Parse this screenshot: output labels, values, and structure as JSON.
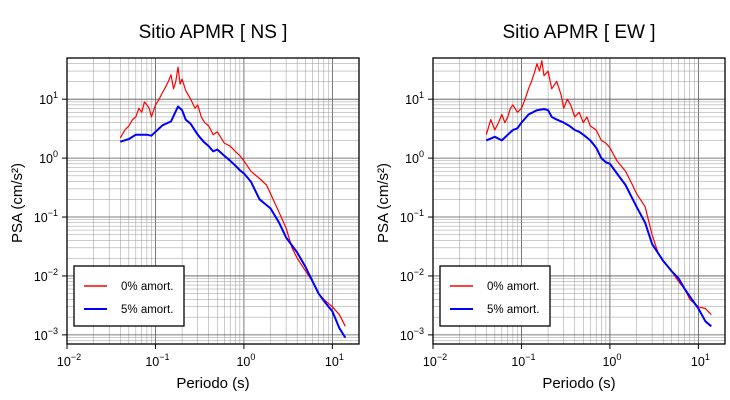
{
  "chart_data": [
    {
      "type": "line",
      "title": "Sitio APMR [ NS ]",
      "xlabel": "Periodo (s)",
      "ylabel": "PSA (cm/s²)",
      "xscale": "log",
      "yscale": "log",
      "xlim": [
        0.01,
        20
      ],
      "ylim": [
        0.0007,
        50
      ],
      "grid": true,
      "legend_position": "bottom-left",
      "x_ticks": [
        {
          "b": "10",
          "e": "−2"
        },
        {
          "b": "10",
          "e": "−1"
        },
        {
          "b": "10",
          "e": "0"
        },
        {
          "b": "10",
          "e": "1"
        }
      ],
      "y_ticks": [
        {
          "b": "10",
          "e": "−3"
        },
        {
          "b": "10",
          "e": "−2"
        },
        {
          "b": "10",
          "e": "−1"
        },
        {
          "b": "10",
          "e": "0"
        },
        {
          "b": "10",
          "e": "1"
        }
      ],
      "series": [
        {
          "name": "0% amort.",
          "color": "#ff0000",
          "x": [
            0.04,
            0.045,
            0.05,
            0.055,
            0.06,
            0.065,
            0.07,
            0.075,
            0.08,
            0.085,
            0.09,
            0.1,
            0.11,
            0.12,
            0.13,
            0.14,
            0.15,
            0.16,
            0.17,
            0.18,
            0.19,
            0.2,
            0.22,
            0.25,
            0.28,
            0.3,
            0.33,
            0.36,
            0.4,
            0.45,
            0.5,
            0.6,
            0.7,
            0.8,
            0.9,
            1.0,
            1.2,
            1.5,
            1.8,
            2.0,
            2.5,
            3.0,
            3.5,
            4.0,
            5.0,
            6.0,
            7.0,
            8.0,
            10.0,
            12.0,
            14.0
          ],
          "y": [
            2.2,
            3.0,
            3.5,
            4.5,
            5.0,
            7.0,
            6.0,
            9.0,
            8.0,
            7.0,
            5.0,
            8.0,
            10.0,
            13.0,
            16.0,
            20.0,
            26.0,
            15.0,
            20.0,
            35.0,
            18.0,
            22.0,
            14.0,
            10.0,
            7.0,
            8.0,
            5.0,
            4.0,
            3.5,
            2.5,
            2.8,
            1.8,
            1.6,
            1.3,
            1.1,
            0.9,
            0.6,
            0.45,
            0.35,
            0.25,
            0.12,
            0.065,
            0.03,
            0.02,
            0.012,
            0.008,
            0.005,
            0.004,
            0.003,
            0.0022,
            0.0014
          ]
        },
        {
          "name": "5% amort.",
          "color": "#0000ff",
          "x": [
            0.04,
            0.05,
            0.06,
            0.07,
            0.08,
            0.09,
            0.1,
            0.12,
            0.15,
            0.18,
            0.2,
            0.22,
            0.25,
            0.3,
            0.35,
            0.4,
            0.45,
            0.5,
            0.6,
            0.7,
            0.8,
            0.9,
            1.0,
            1.2,
            1.5,
            2.0,
            2.5,
            3.0,
            4.0,
            5.0,
            6.0,
            7.0,
            8.0,
            10.0,
            12.0,
            14.0
          ],
          "y": [
            1.9,
            2.1,
            2.5,
            2.5,
            2.5,
            2.4,
            2.8,
            3.6,
            4.2,
            7.5,
            6.5,
            4.5,
            3.8,
            2.5,
            1.9,
            1.6,
            1.3,
            1.4,
            1.1,
            0.9,
            0.75,
            0.62,
            0.55,
            0.4,
            0.2,
            0.14,
            0.08,
            0.045,
            0.025,
            0.014,
            0.008,
            0.005,
            0.0038,
            0.0025,
            0.0013,
            0.0009
          ]
        }
      ]
    },
    {
      "type": "line",
      "title": "Sitio APMR [ EW ]",
      "xlabel": "Periodo (s)",
      "ylabel": "PSA (cm/s²)",
      "xscale": "log",
      "yscale": "log",
      "xlim": [
        0.01,
        20
      ],
      "ylim": [
        0.0007,
        50
      ],
      "grid": true,
      "legend_position": "bottom-left",
      "x_ticks": [
        {
          "b": "10",
          "e": "−2"
        },
        {
          "b": "10",
          "e": "−1"
        },
        {
          "b": "10",
          "e": "0"
        },
        {
          "b": "10",
          "e": "1"
        }
      ],
      "y_ticks": [
        {
          "b": "10",
          "e": "−3"
        },
        {
          "b": "10",
          "e": "−2"
        },
        {
          "b": "10",
          "e": "−1"
        },
        {
          "b": "10",
          "e": "0"
        },
        {
          "b": "10",
          "e": "1"
        }
      ],
      "series": [
        {
          "name": "0% amort.",
          "color": "#ff0000",
          "x": [
            0.04,
            0.045,
            0.05,
            0.055,
            0.06,
            0.065,
            0.07,
            0.075,
            0.08,
            0.09,
            0.1,
            0.11,
            0.12,
            0.13,
            0.14,
            0.15,
            0.16,
            0.17,
            0.18,
            0.2,
            0.22,
            0.25,
            0.28,
            0.3,
            0.33,
            0.36,
            0.4,
            0.45,
            0.5,
            0.55,
            0.6,
            0.7,
            0.8,
            0.9,
            1.0,
            1.2,
            1.5,
            1.8,
            2.0,
            2.5,
            3.0,
            3.5,
            4.0,
            5.0,
            6.0,
            7.0,
            8.0,
            10.0,
            12.0,
            14.0
          ],
          "y": [
            2.5,
            4.5,
            3.0,
            4.0,
            5.5,
            4.0,
            5.0,
            7.0,
            8.0,
            6.0,
            7.0,
            10.0,
            15.0,
            20.0,
            28.0,
            40.0,
            30.0,
            45.0,
            25.0,
            30.0,
            15.0,
            20.0,
            12.0,
            7.0,
            10.0,
            8.0,
            5.0,
            6.0,
            4.0,
            5.0,
            3.5,
            3.0,
            2.0,
            1.8,
            1.5,
            0.9,
            0.6,
            0.35,
            0.25,
            0.15,
            0.05,
            0.025,
            0.018,
            0.012,
            0.008,
            0.006,
            0.004,
            0.003,
            0.0028,
            0.0022
          ]
        },
        {
          "name": "5% amort.",
          "color": "#0000ff",
          "x": [
            0.04,
            0.05,
            0.06,
            0.07,
            0.08,
            0.09,
            0.1,
            0.12,
            0.15,
            0.18,
            0.2,
            0.22,
            0.25,
            0.3,
            0.35,
            0.4,
            0.45,
            0.5,
            0.6,
            0.7,
            0.8,
            0.9,
            1.0,
            1.2,
            1.5,
            2.0,
            2.5,
            3.0,
            4.0,
            5.0,
            6.0,
            7.0,
            8.0,
            10.0,
            12.0,
            14.0
          ],
          "y": [
            2.0,
            2.3,
            2.0,
            2.5,
            3.0,
            3.2,
            4.0,
            5.5,
            6.5,
            6.8,
            6.5,
            5.0,
            4.5,
            4.0,
            3.5,
            3.0,
            2.8,
            2.5,
            2.0,
            1.5,
            1.0,
            0.85,
            0.8,
            0.55,
            0.35,
            0.15,
            0.08,
            0.035,
            0.018,
            0.012,
            0.009,
            0.006,
            0.0045,
            0.0028,
            0.0017,
            0.0014
          ]
        }
      ]
    }
  ]
}
